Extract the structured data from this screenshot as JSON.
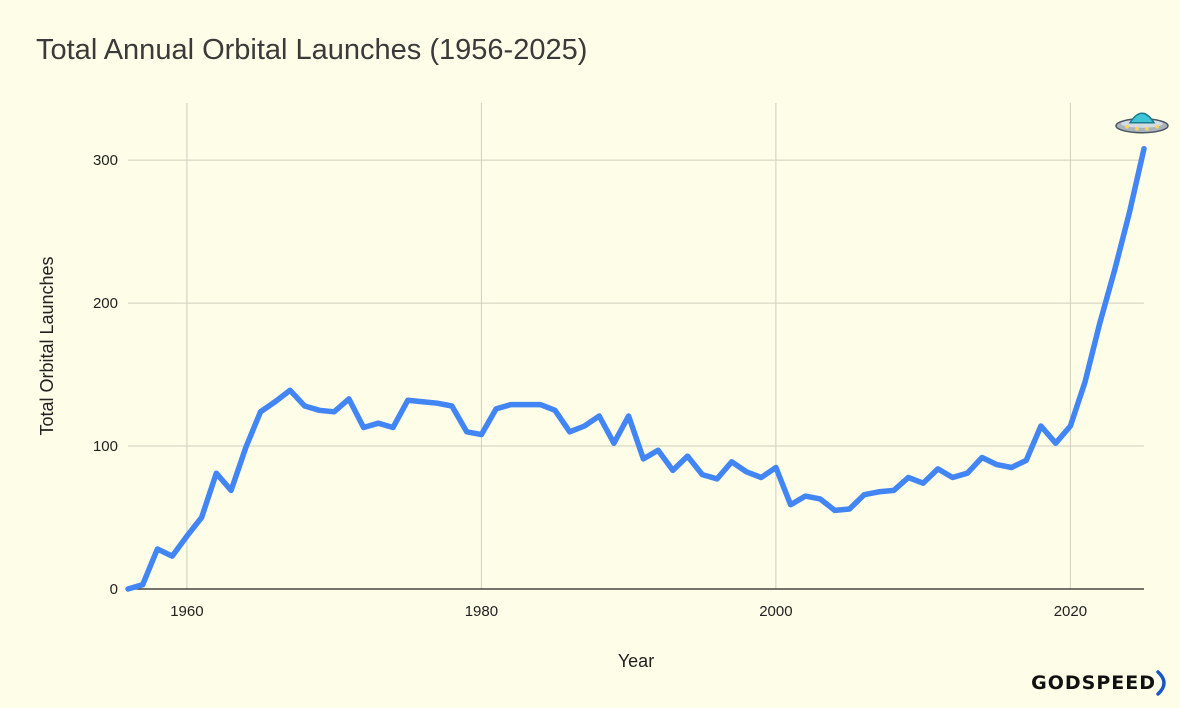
{
  "chart_data": {
    "type": "line",
    "title": "Total Annual Orbital Launches (1956-2025)",
    "xlabel": "Year",
    "ylabel": "Total Orbital Launches",
    "xlim": [
      1956,
      2025
    ],
    "ylim": [
      0,
      340
    ],
    "x_ticks": [
      1960,
      1980,
      2000,
      2020
    ],
    "y_ticks": [
      0,
      100,
      200,
      300
    ],
    "grid": true,
    "line_color": "#4285f4",
    "end_marker": "flying-saucer-emoji",
    "series": [
      {
        "x": [
          1956,
          1957,
          1958,
          1959,
          1960,
          1961,
          1962,
          1963,
          1964,
          1965,
          1966,
          1967,
          1968,
          1969,
          1970,
          1971,
          1972,
          1973,
          1974,
          1975,
          1976,
          1977,
          1978,
          1979,
          1980,
          1981,
          1982,
          1983,
          1984,
          1985,
          1986,
          1987,
          1988,
          1989,
          1990,
          1991,
          1992,
          1993,
          1994,
          1995,
          1996,
          1997,
          1998,
          1999,
          2000,
          2001,
          2002,
          2003,
          2004,
          2005,
          2006,
          2007,
          2008,
          2009,
          2010,
          2011,
          2012,
          2013,
          2014,
          2015,
          2016,
          2017,
          2018,
          2019,
          2020,
          2021,
          2022,
          2023,
          2024,
          2025
        ],
        "values": [
          0,
          3,
          28,
          23,
          37,
          50,
          81,
          69,
          99,
          124,
          131,
          139,
          128,
          125,
          124,
          133,
          113,
          116,
          113,
          132,
          131,
          130,
          128,
          110,
          108,
          126,
          129,
          129,
          129,
          125,
          110,
          114,
          121,
          102,
          121,
          91,
          97,
          83,
          93,
          80,
          77,
          89,
          82,
          78,
          85,
          59,
          65,
          63,
          55,
          56,
          66,
          68,
          69,
          78,
          74,
          84,
          78,
          81,
          92,
          87,
          85,
          90,
          114,
          102,
          114,
          145,
          186,
          223,
          263,
          308
        ]
      }
    ]
  },
  "branding": {
    "logo_text": "GODSPEED",
    "logo_color": "#1a56c4"
  }
}
